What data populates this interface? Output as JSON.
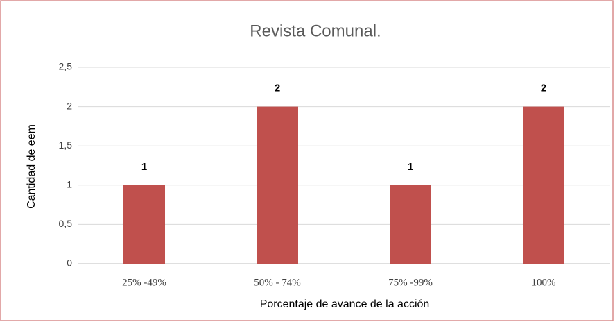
{
  "chart_data": {
    "type": "bar",
    "title": "Revista Comunal.",
    "categories": [
      "25% -49%",
      "50% - 74%",
      "75% -99%",
      "100%"
    ],
    "values": [
      1,
      2,
      1,
      2
    ],
    "color": "#c0504d",
    "xlabel": "Porcentaje de avance de la acción",
    "ylabel": "Cantidad de eem",
    "ylim": [
      0,
      2.5
    ],
    "yticks": [
      0,
      {
        "value": 0.5,
        "label": "0,5"
      },
      1,
      {
        "value": 1.5,
        "label": "1,5"
      },
      2,
      {
        "value": 2.5,
        "label": "2,5"
      }
    ],
    "grid": true
  }
}
